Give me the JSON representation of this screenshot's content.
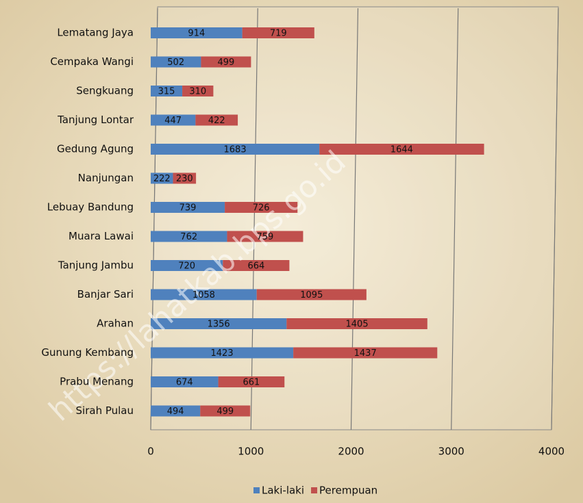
{
  "chart_data": {
    "type": "stacked-bar-horizontal",
    "categories": [
      "Lematang Jaya",
      "Cempaka Wangi",
      "Sengkuang",
      "Tanjung Lontar",
      "Gedung Agung",
      "Nanjungan",
      "Lebuay Bandung",
      "Muara Lawai",
      "Tanjung Jambu",
      "Banjar Sari",
      "Arahan",
      "Gunung Kembang",
      "Prabu Menang",
      "Sirah Pulau"
    ],
    "series": [
      {
        "name": "Laki-laki",
        "color": "#4f81bd",
        "values": [
          914,
          502,
          315,
          447,
          1683,
          222,
          739,
          762,
          720,
          1058,
          1356,
          1423,
          674,
          494
        ]
      },
      {
        "name": "Perempuan",
        "color": "#c0504d",
        "values": [
          719,
          499,
          310,
          422,
          1644,
          230,
          726,
          759,
          664,
          1095,
          1405,
          1437,
          661,
          499
        ]
      }
    ],
    "xlim": [
      0,
      4000
    ],
    "xticks": [
      0,
      1000,
      2000,
      3000,
      4000
    ],
    "grid": true,
    "watermark": "https://lahatkab.bps.go.id"
  }
}
